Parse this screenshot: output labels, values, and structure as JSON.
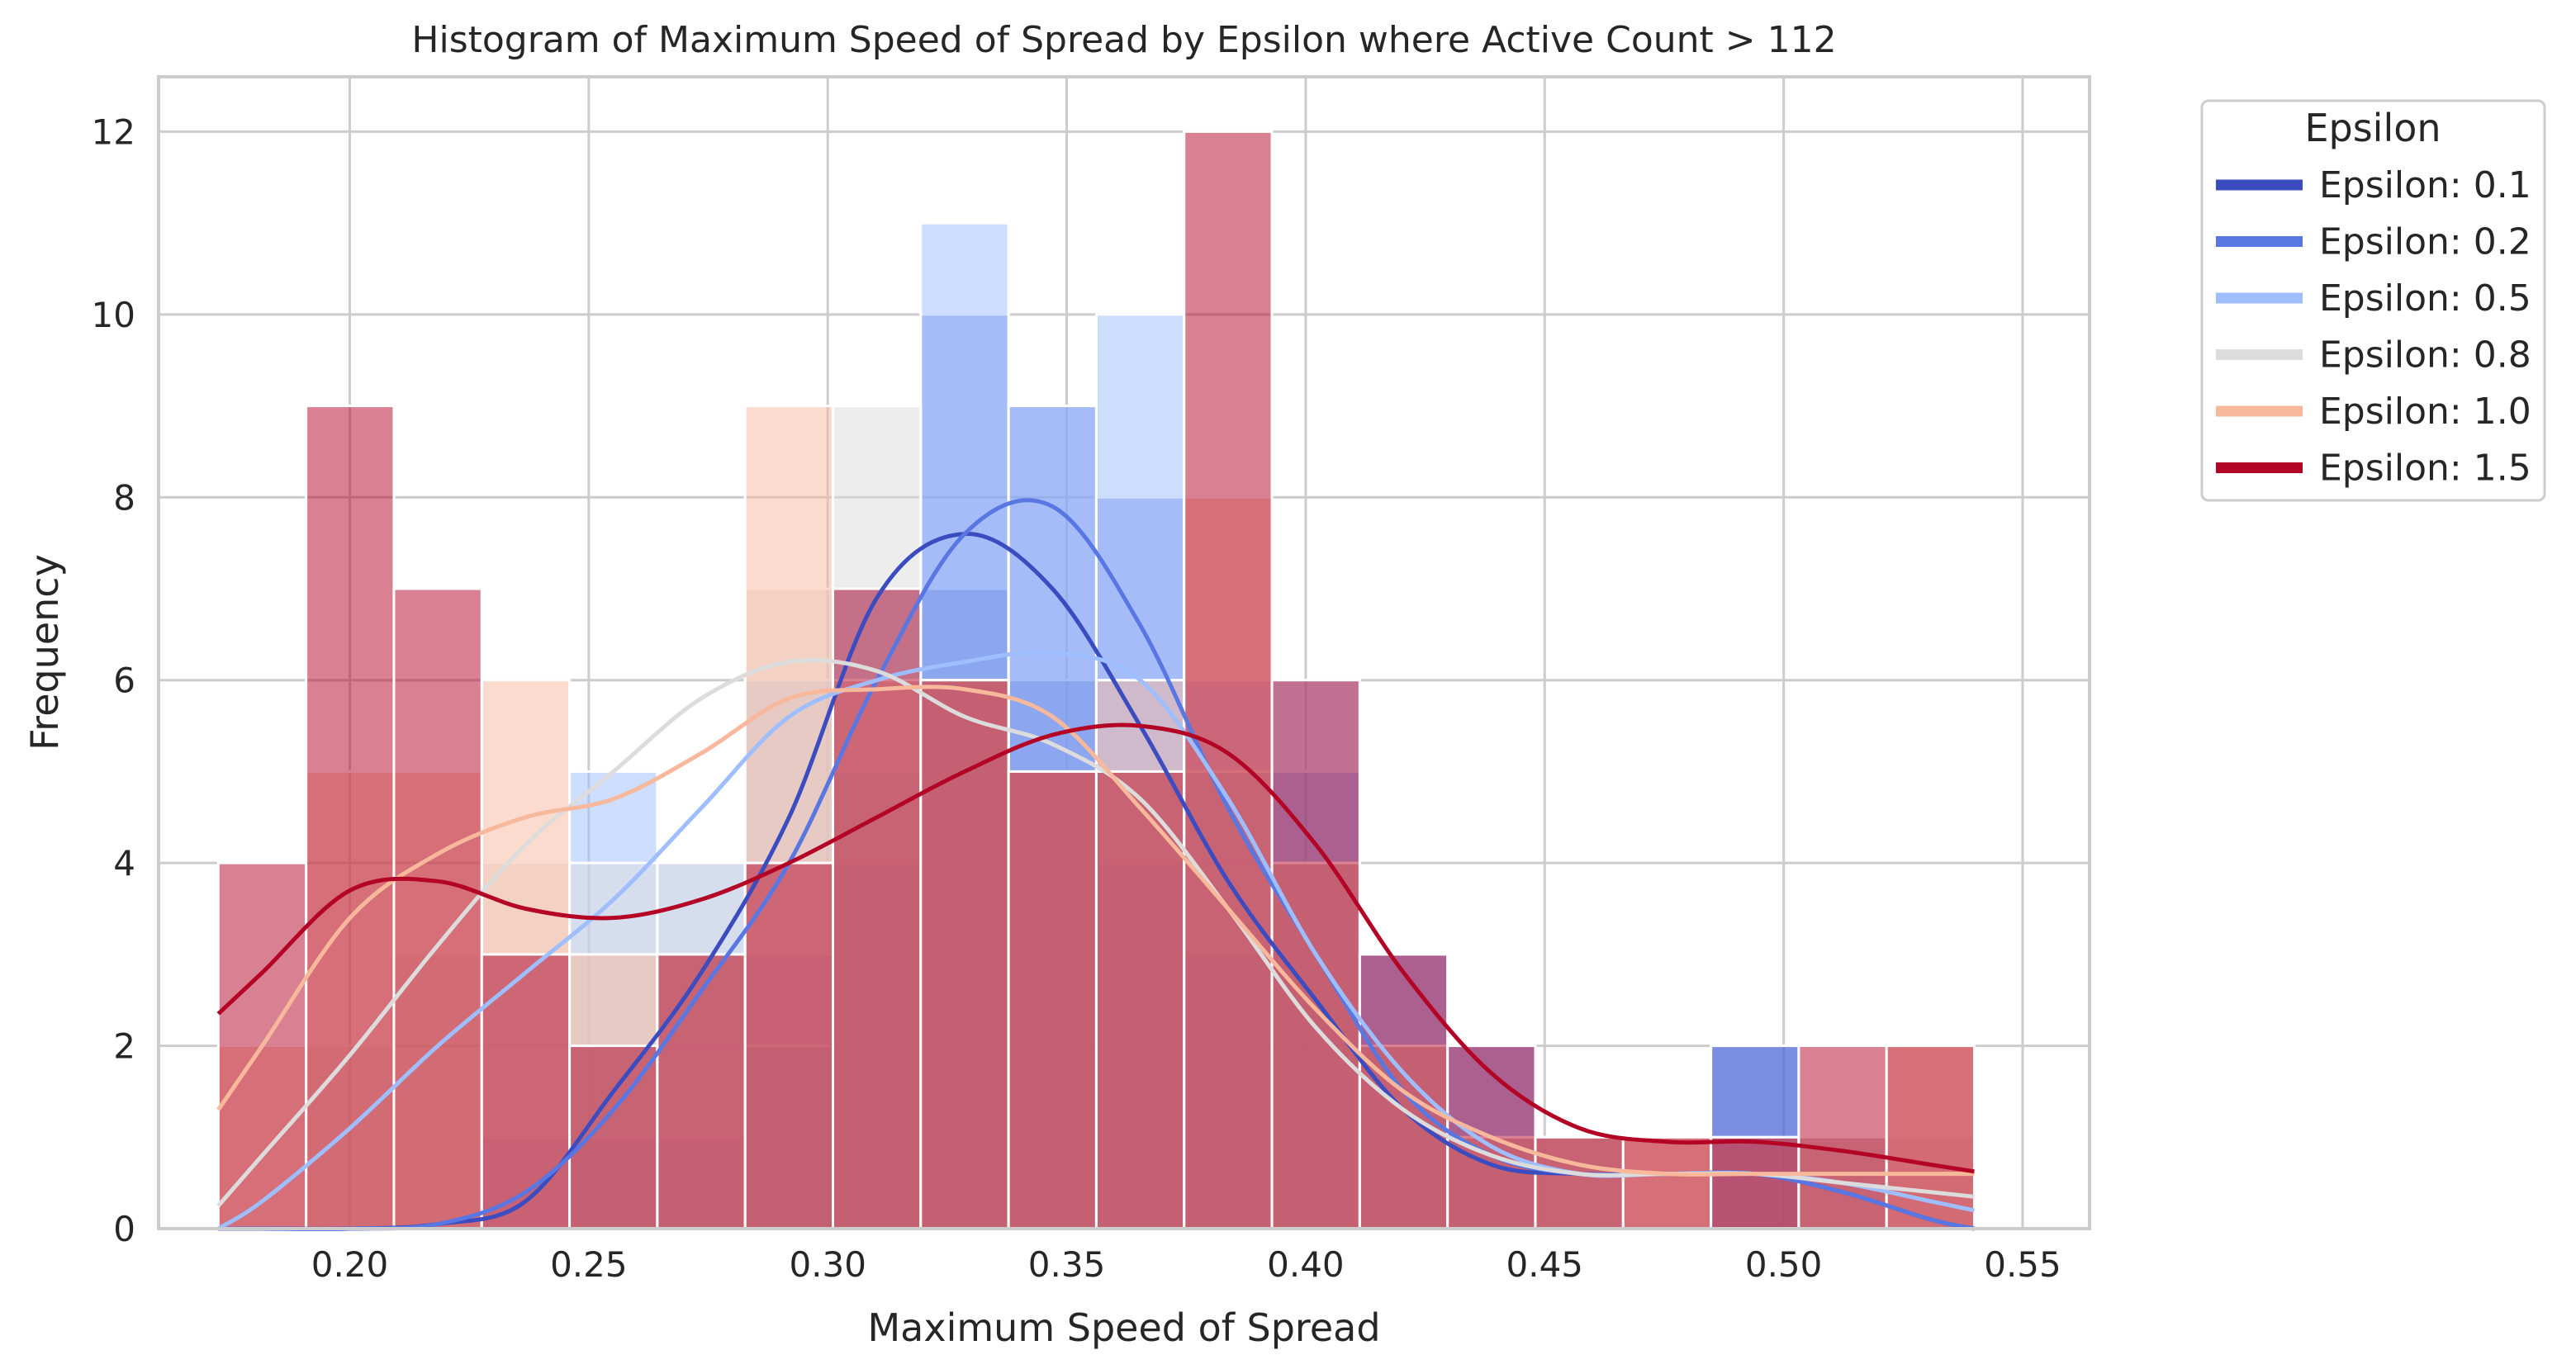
{
  "chart_data": {
    "type": "bar",
    "title": "Histogram of Maximum Speed of Spread by Epsilon where Active Count > 112",
    "xlabel": "Maximum Speed of Spread",
    "ylabel": "Frequency",
    "xlim": [
      0.16,
      0.564
    ],
    "ylim": [
      0,
      12.6
    ],
    "xticks": [
      0.2,
      0.25,
      0.3,
      0.35,
      0.4,
      0.45,
      0.5,
      0.55
    ],
    "xtick_labels": [
      "0.20",
      "0.25",
      "0.30",
      "0.35",
      "0.40",
      "0.45",
      "0.50",
      "0.55"
    ],
    "yticks": [
      0,
      2,
      4,
      6,
      8,
      10,
      12
    ],
    "ytick_labels": [
      "0",
      "2",
      "4",
      "6",
      "8",
      "10",
      "12"
    ],
    "grid": true,
    "bin_edges": [
      0.1725,
      0.19087,
      0.20924,
      0.22761,
      0.24598,
      0.26435,
      0.28272,
      0.30109,
      0.31946,
      0.33783,
      0.3562,
      0.37457,
      0.39294,
      0.41131,
      0.42968,
      0.44805,
      0.46642,
      0.48479,
      0.50316,
      0.52153,
      0.5399
    ],
    "legend": {
      "title": "Epsilon",
      "position": "outside-right"
    },
    "series": [
      {
        "name": "Epsilon: 0.1",
        "color": "#3b4cc0",
        "counts": [
          0,
          0,
          0,
          1,
          1,
          1,
          3,
          4,
          7,
          6,
          4,
          3,
          4,
          2,
          1,
          0,
          0,
          2,
          0,
          0
        ],
        "kde": [
          0.0,
          0.0,
          0.05,
          0.3,
          1.5,
          2.8,
          4.5,
          6.9,
          7.6,
          7.0,
          5.5,
          3.8,
          2.5,
          1.3,
          0.7,
          0.6,
          0.6,
          0.6,
          0.4,
          0.1
        ]
      },
      {
        "name": "Epsilon: 0.2",
        "color": "#5977e3",
        "counts": [
          0,
          0,
          0,
          0,
          2,
          3,
          2,
          5,
          10,
          9,
          8,
          5,
          5,
          3,
          2,
          1,
          0,
          2,
          1,
          0
        ],
        "kde": [
          0.0,
          0.0,
          0.05,
          0.4,
          1.3,
          2.6,
          4.0,
          6.0,
          7.6,
          7.9,
          6.6,
          4.6,
          3.0,
          1.5,
          0.8,
          0.6,
          0.6,
          0.6,
          0.4,
          0.1
        ]
      },
      {
        "name": "Epsilon: 0.5",
        "color": "#9ebeff",
        "counts": [
          0,
          0,
          0,
          3,
          5,
          4,
          6,
          7,
          11,
          9,
          10,
          6,
          6,
          3,
          2,
          1,
          0,
          0,
          1,
          0
        ],
        "kde": [
          0.3,
          1.1,
          2.0,
          2.8,
          3.6,
          4.6,
          5.6,
          6.0,
          6.2,
          6.3,
          6.0,
          4.7,
          3.0,
          1.7,
          0.9,
          0.6,
          0.6,
          0.6,
          0.5,
          0.3
        ]
      },
      {
        "name": "Epsilon: 0.8",
        "color": "#dddcdc",
        "counts": [
          0,
          2,
          3,
          4,
          4,
          4,
          7,
          9,
          6,
          5,
          5,
          5,
          4,
          2,
          1,
          1,
          0,
          0,
          1,
          1
        ],
        "kde": [
          0.8,
          1.9,
          3.1,
          4.2,
          5.0,
          5.8,
          6.2,
          6.1,
          5.6,
          5.3,
          4.7,
          3.5,
          2.2,
          1.3,
          0.8,
          0.6,
          0.6,
          0.6,
          0.5,
          0.4
        ]
      },
      {
        "name": "Epsilon: 1.0",
        "color": "#f7b89c",
        "counts": [
          2,
          5,
          5,
          6,
          3,
          3,
          9,
          6,
          6,
          5,
          6,
          8,
          4,
          2,
          1,
          1,
          1,
          1,
          1,
          2
        ],
        "kde": [
          2.0,
          3.4,
          4.1,
          4.5,
          4.7,
          5.2,
          5.8,
          5.9,
          5.9,
          5.6,
          4.6,
          3.5,
          2.4,
          1.5,
          1.0,
          0.7,
          0.6,
          0.6,
          0.6,
          0.6
        ]
      },
      {
        "name": "Epsilon: 1.5",
        "color": "#b40426",
        "counts": [
          4,
          9,
          7,
          3,
          2,
          3,
          4,
          7,
          6,
          5,
          5,
          12,
          6,
          3,
          2,
          1,
          1,
          1,
          2,
          2
        ],
        "kde": [
          2.8,
          3.7,
          3.8,
          3.5,
          3.4,
          3.6,
          4.0,
          4.5,
          5.0,
          5.4,
          5.5,
          5.2,
          4.2,
          2.8,
          1.7,
          1.1,
          0.95,
          0.95,
          0.85,
          0.7
        ]
      }
    ]
  }
}
